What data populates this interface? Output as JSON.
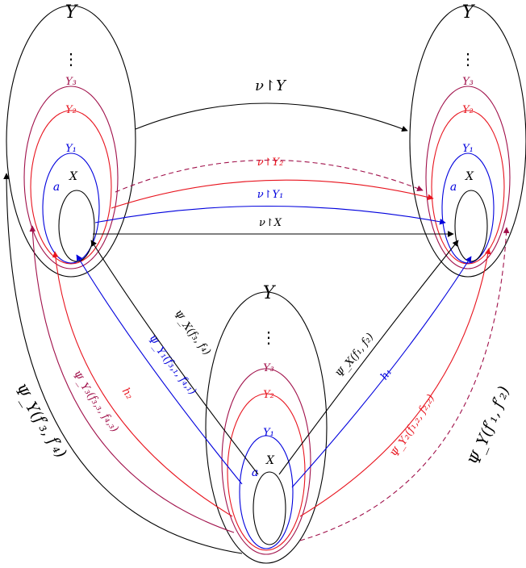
{
  "colors": {
    "black": "#000000",
    "blue": "#0000dd",
    "red": "#e8141e",
    "purple": "#a0104a",
    "violet": "#7a1a8a"
  },
  "left": {
    "title": "Y",
    "dots": "⋮",
    "y3": "Y₃",
    "y2": "Y₂",
    "y1": "Y₁",
    "x": "X",
    "a": "a"
  },
  "right": {
    "title": "Y",
    "dots": "⋮",
    "y3": "Y₃",
    "y2": "Y₂",
    "y1": "Y₁",
    "x": "X",
    "a": "a"
  },
  "bottom": {
    "title": "Y",
    "dots": "⋮",
    "y3": "Y₃",
    "y2": "Y₂",
    "y1": "Y₁",
    "x": "X",
    "a": "a"
  },
  "arrows": {
    "nu_y": "ν↾Y",
    "nu_y2": "ν↾Y₂",
    "nu_y1": "ν↾Y₁",
    "nu_x": "ν↾X",
    "psi_x_34": "Ψ_X(f₃, f₄)",
    "psi_y1_31_41": "Ψ_Y₁(f₃,₁, f₄,₁)",
    "h2": "h₂",
    "psi_y3_33_43": "Ψ_Y₃(f₃,₃, f₄,₃)",
    "psi_y_3p_4p": "Ψ_Y(f′₃, f′₄)",
    "psi_x_12": "Ψ_X(f₁, f₂)",
    "h1": "h₁",
    "psi_y2_12_22": "Ψ_Y₂(f₁,₂, f₂,₂)",
    "psi_y_1p_2p": "Ψ_Y(f′₁, f′₂)"
  }
}
